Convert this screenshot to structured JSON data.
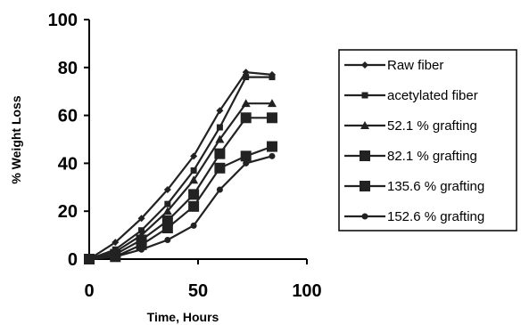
{
  "chart_data": {
    "type": "line",
    "title": "",
    "xlabel": "Time, Hours",
    "ylabel": "% Weight Loss",
    "xlim": [
      0,
      100
    ],
    "ylim": [
      0,
      100
    ],
    "x_ticks": [
      "0",
      "50",
      "100"
    ],
    "y_ticks": [
      "0",
      "20",
      "40",
      "60",
      "80",
      "100"
    ],
    "grid": false,
    "legend_position": "right",
    "x": [
      0,
      12,
      24,
      36,
      48,
      60,
      72,
      84
    ],
    "series": [
      {
        "name": "Raw fiber",
        "marker": "diamond",
        "values": [
          0,
          7,
          17,
          29,
          43,
          62,
          78,
          77
        ]
      },
      {
        "name": "acetylated fiber",
        "marker": "square-small",
        "values": [
          0,
          4,
          12,
          23,
          37,
          55,
          76,
          76
        ]
      },
      {
        "name": "52.1 % grafting",
        "marker": "triangle",
        "values": [
          0,
          3,
          10,
          20,
          33,
          50,
          65,
          65
        ]
      },
      {
        "name": "82.1 % grafting",
        "marker": "square-large",
        "values": [
          0,
          2,
          8,
          16,
          27,
          44,
          59,
          59
        ]
      },
      {
        "name": "135.6 % grafting",
        "marker": "square-large",
        "values": [
          0,
          1,
          6,
          13,
          22,
          38,
          43,
          47
        ]
      },
      {
        "name": "152.6 % grafting",
        "marker": "circle",
        "values": [
          0,
          1,
          4,
          8,
          14,
          29,
          40,
          43
        ]
      }
    ]
  }
}
